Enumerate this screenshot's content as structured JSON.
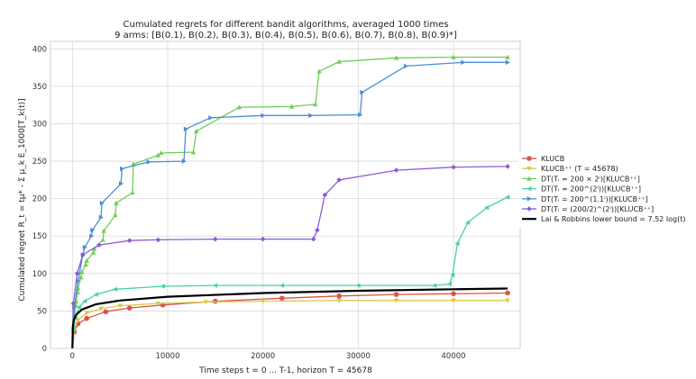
{
  "chart_data": {
    "type": "line",
    "title": "Cumulated regrets for different bandit algorithms, averaged 1000 times",
    "subtitle": "9 arms: [B(0.1), B(0.2), B(0.3), B(0.4), B(0.5), B(0.6), B(0.7), B(0.8), B(0.9)*]",
    "xlabel": "Time steps t = 0 ... T-1, horizon T = 45678",
    "ylabel": "Cumulated regret R_t = tμ* - Σ μ_k E_1000[T_k(t)]",
    "xlim": [
      -2300,
      47000
    ],
    "ylim": [
      0,
      410
    ],
    "xticks": [
      0,
      10000,
      20000,
      30000,
      40000
    ],
    "yticks": [
      0,
      50,
      100,
      150,
      200,
      250,
      300,
      350,
      400
    ],
    "grid": true,
    "legend_position": "right",
    "series": [
      {
        "name": "KLUCB",
        "color": "#d9534f",
        "marker": "circle",
        "x": [
          0,
          200,
          600,
          1500,
          3500,
          6000,
          9500,
          15000,
          22000,
          28000,
          34000,
          40000,
          45678
        ],
        "y": [
          0,
          22,
          33,
          40,
          49,
          54,
          58,
          63,
          67,
          70,
          72,
          73,
          74
        ]
      },
      {
        "name": "KLUCB++ (T=45678)",
        "color": "#d9c94a",
        "marker": "triangle-down",
        "x": [
          0,
          200,
          600,
          1500,
          3000,
          5000,
          9000,
          14000,
          20000,
          28000,
          34000,
          40000,
          45678
        ],
        "y": [
          0,
          25,
          38,
          47,
          53,
          57,
          60,
          62,
          63,
          64,
          64,
          64,
          64
        ]
      },
      {
        "name": "DT(T_i = 200 × 2^i)[KLUCB++]",
        "color": "#6fcf5a",
        "marker": "triangle-up",
        "x": [
          0,
          150,
          200,
          350,
          400,
          550,
          600,
          900,
          1000,
          1400,
          1500,
          2200,
          2300,
          3200,
          3300,
          4500,
          4600,
          6300,
          6400,
          9000,
          9300,
          12700,
          13000,
          17500,
          23000,
          25500,
          25900,
          28000,
          34000,
          40000,
          45678
        ],
        "y": [
          0,
          30,
          40,
          58,
          63,
          75,
          80,
          95,
          102,
          112,
          117,
          128,
          133,
          145,
          157,
          178,
          194,
          208,
          246,
          258,
          261,
          262,
          290,
          322,
          323,
          326,
          370,
          383,
          388,
          389,
          389
        ]
      },
      {
        "name": "DT(T_i = 200^(2^i))[KLUCB++]",
        "color": "#48d1a8",
        "marker": "triangle-left",
        "x": [
          0,
          100,
          300,
          700,
          1300,
          2500,
          4500,
          9500,
          15000,
          22000,
          30000,
          38000,
          39600,
          39900,
          40400,
          41500,
          43500,
          45678
        ],
        "y": [
          0,
          25,
          42,
          55,
          63,
          72,
          79,
          83,
          84,
          84,
          84,
          84,
          86,
          98,
          140,
          168,
          188,
          202
        ]
      },
      {
        "name": "DT(T_i = 200^(1.1^i))[KLUCB++]",
        "color": "#4a8fd6",
        "marker": "triangle-right",
        "x": [
          0,
          200,
          600,
          1100,
          1300,
          2000,
          2100,
          3000,
          3100,
          5100,
          5200,
          8000,
          11700,
          11900,
          14500,
          20000,
          25000,
          30200,
          30400,
          35000,
          41000,
          45678
        ],
        "y": [
          0,
          55,
          90,
          125,
          135,
          150,
          158,
          175,
          194,
          220,
          240,
          249,
          250,
          293,
          308,
          311,
          311,
          312,
          342,
          377,
          382,
          382
        ]
      },
      {
        "name": "DT(T_i = (200/2)^(2^i))[KLUCB++]",
        "color": "#8b5cd6",
        "marker": "diamond",
        "x": [
          0,
          100,
          500,
          1100,
          2800,
          6000,
          9000,
          15000,
          20000,
          25300,
          25700,
          26500,
          28000,
          34000,
          40000,
          45678
        ],
        "y": [
          0,
          60,
          100,
          125,
          138,
          144,
          145,
          146,
          146,
          146,
          158,
          205,
          225,
          238,
          242,
          243
        ]
      },
      {
        "name": "Lai & Robbins lower bound = 7.52 log(t)",
        "color": "#000000",
        "marker": "none",
        "x": [
          1,
          50,
          150,
          400,
          1000,
          2500,
          5000,
          10000,
          20000,
          30000,
          40000,
          45678
        ],
        "y": [
          0,
          29,
          38,
          45,
          52,
          59,
          64,
          69,
          74,
          77,
          79,
          80
        ]
      }
    ],
    "legend": [
      {
        "label": "KLUCB",
        "color": "#d9534f",
        "marker": "circle"
      },
      {
        "label": "KLUCB⁺⁺ (T = 45678)",
        "color": "#d9c94a",
        "marker": "triangle-down"
      },
      {
        "label": "DT(Tᵢ = 200 × 2ⁱ)[KLUCB⁺⁺]",
        "color": "#6fcf5a",
        "marker": "triangle-up"
      },
      {
        "label": "DT(Tᵢ = 200^(2ⁱ))[KLUCB⁺⁺]",
        "color": "#48d1a8",
        "marker": "triangle-left"
      },
      {
        "label": "DT(Tᵢ = 200^(1.1ⁱ))[KLUCB⁺⁺]",
        "color": "#4a8fd6",
        "marker": "triangle-right"
      },
      {
        "label": "DT(Tᵢ = (200/2)^(2ⁱ))[KLUCB⁺⁺]",
        "color": "#8b5cd6",
        "marker": "diamond"
      },
      {
        "label": "Lai & Robbins lower bound = 7.52 log(t)",
        "color": "#000000",
        "marker": "none"
      }
    ]
  }
}
